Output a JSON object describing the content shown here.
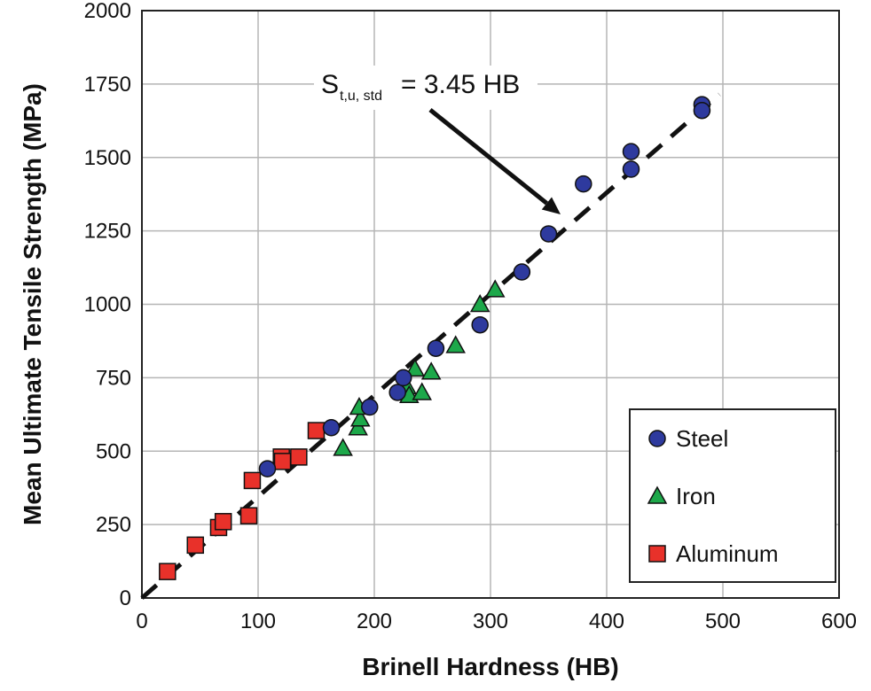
{
  "chart_data": {
    "type": "scatter",
    "xlabel": "Brinell Hardness (HB)",
    "ylabel": "Mean Ultimate Tensile Strength (MPa)",
    "xlim": [
      0,
      600
    ],
    "ylim": [
      0,
      2000
    ],
    "x_ticks": [
      "0",
      "100",
      "200",
      "300",
      "400",
      "500",
      "600"
    ],
    "y_ticks": [
      "0",
      "250",
      "500",
      "750",
      "1000",
      "1250",
      "1500",
      "1750",
      "2000"
    ],
    "grid": true,
    "legend_position": "bottom-right",
    "series": [
      {
        "name": "Steel",
        "marker": "circle",
        "color": "#2E3A9E",
        "points": [
          [
            108,
            440
          ],
          [
            163,
            580
          ],
          [
            196,
            650
          ],
          [
            220,
            700
          ],
          [
            225,
            750
          ],
          [
            253,
            850
          ],
          [
            291,
            930
          ],
          [
            327,
            1110
          ],
          [
            350,
            1240
          ],
          [
            380,
            1410
          ],
          [
            421,
            1460
          ],
          [
            421,
            1520
          ],
          [
            482,
            1680
          ],
          [
            482,
            1660
          ]
        ]
      },
      {
        "name": "Iron",
        "marker": "triangle",
        "color": "#1DA84A",
        "points": [
          [
            173,
            510
          ],
          [
            186,
            580
          ],
          [
            188,
            610
          ],
          [
            187,
            650
          ],
          [
            228,
            720
          ],
          [
            230,
            690
          ],
          [
            235,
            780
          ],
          [
            241,
            700
          ],
          [
            249,
            770
          ],
          [
            270,
            860
          ],
          [
            291,
            1000
          ],
          [
            304,
            1050
          ]
        ]
      },
      {
        "name": "Aluminum",
        "marker": "square",
        "color": "#E8312A",
        "points": [
          [
            22,
            90
          ],
          [
            46,
            180
          ],
          [
            66,
            240
          ],
          [
            70,
            260
          ],
          [
            92,
            280
          ],
          [
            95,
            400
          ],
          [
            120,
            480
          ],
          [
            121,
            465
          ],
          [
            135,
            480
          ],
          [
            150,
            570
          ]
        ]
      }
    ],
    "fit_line": {
      "label": "S",
      "subscript": "t,u, std",
      "rhs": "= 3.45 HB",
      "slope": 3.45,
      "x_range": [
        0,
        497
      ]
    }
  }
}
